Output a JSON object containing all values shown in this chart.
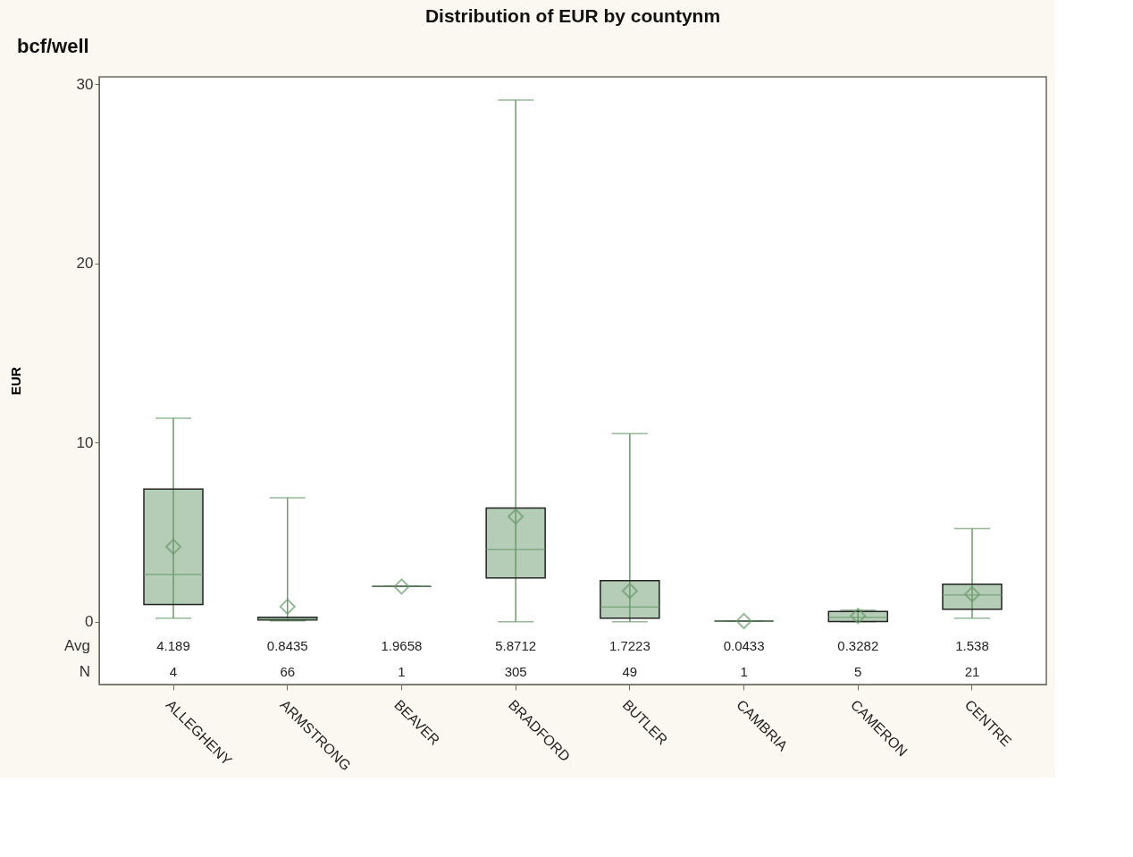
{
  "chart_data": {
    "type": "box",
    "title": "Distribution of EUR by countynm",
    "ylabel": "EUR",
    "categories": [
      "ALLEGHENY",
      "ARMSTRONG",
      "BEAVER",
      "BRADFORD",
      "BUTLER",
      "CAMBRIA",
      "CAMERON",
      "CENTRE"
    ],
    "boxes": [
      {
        "low": 0.2,
        "q1": 0.96,
        "median": 2.64,
        "q3": 7.4,
        "high": 11.35,
        "mean": 4.189
      },
      {
        "low": 0.05,
        "q1": 0.1,
        "median": 0.15,
        "q3": 0.25,
        "high": 6.92,
        "mean": 0.8435
      },
      {
        "low": 1.9658,
        "q1": 1.9658,
        "median": 1.9658,
        "q3": 1.9658,
        "high": 1.9658,
        "mean": 1.9658
      },
      {
        "low": 0.0,
        "q1": 2.45,
        "median": 4.04,
        "q3": 6.35,
        "high": 29.1,
        "mean": 5.8712
      },
      {
        "low": 0.0,
        "q1": 0.2,
        "median": 0.82,
        "q3": 2.3,
        "high": 10.5,
        "mean": 1.7223
      },
      {
        "low": 0.0433,
        "q1": 0.0433,
        "median": 0.0433,
        "q3": 0.0433,
        "high": 0.0433,
        "mean": 0.0433
      },
      {
        "low": 0.0,
        "q1": 0.02,
        "median": 0.25,
        "q3": 0.58,
        "high": 0.65,
        "mean": 0.3282
      },
      {
        "low": 0.2,
        "q1": 0.7,
        "median": 1.5,
        "q3": 2.1,
        "high": 5.2,
        "mean": 1.538
      }
    ],
    "value_labels": [
      "4.189",
      "0.8435",
      "1.9658",
      "5.8712",
      "1.7223",
      "0.0433",
      "0.3282",
      "1.538"
    ],
    "marker": "diamond",
    "color": "#6b9a6d",
    "ylim": [
      -3.5,
      30.4
    ],
    "yticks": [
      0,
      10,
      20,
      30
    ],
    "grid": false,
    "annotations": [
      "bcf/well",
      "Avg",
      "N",
      "4",
      "66",
      "1",
      "305",
      "49",
      "1",
      "5",
      "21"
    ]
  }
}
